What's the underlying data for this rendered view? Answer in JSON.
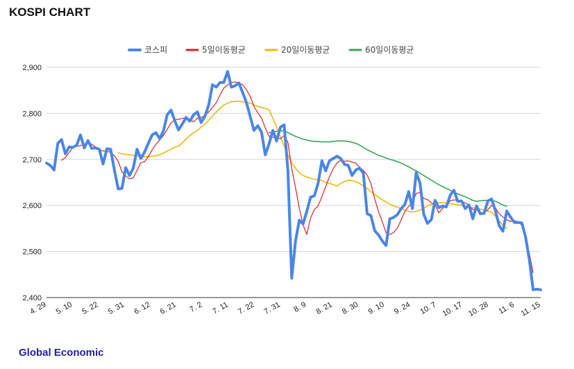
{
  "page": {
    "title": "KOSPI CHART",
    "footer": "Global Economic"
  },
  "colors": {
    "kospi": "#4a86e8",
    "ma5": "#e02020",
    "ma20": "#f2b705",
    "ma60": "#35a853",
    "grid": "#d6d6d6"
  },
  "chart_data": {
    "type": "line",
    "title": "KOSPI CHART",
    "ylim": [
      2400,
      2900
    ],
    "yticks": [
      "2,400",
      "2,500",
      "2,600",
      "2,700",
      "2,800",
      "2,900"
    ],
    "ytick_values": [
      2400,
      2500,
      2600,
      2700,
      2800,
      2900
    ],
    "xtick_labels": [
      "4. 29",
      "5. 10",
      "5. 22",
      "5. 31",
      "6. 12",
      "6. 21",
      "7. 2",
      "7. 11",
      "7. 22",
      "7. 31",
      "8. 9",
      "8. 21",
      "8. 30",
      "9. 10",
      "9. 24",
      "10. 7",
      "10. 17",
      "10. 28",
      "11. 6",
      "11. 15"
    ],
    "legend_position": "top-center",
    "grid": true,
    "series": [
      {
        "name": "코스피",
        "key": "kospi",
        "values": [
          2692,
          2687,
          2677,
          2735,
          2743,
          2712,
          2727,
          2726,
          2731,
          2753,
          2725,
          2741,
          2724,
          2725,
          2722,
          2690,
          2723,
          2722,
          2677,
          2636,
          2637,
          2682,
          2665,
          2681,
          2722,
          2702,
          2716,
          2735,
          2753,
          2758,
          2745,
          2762,
          2797,
          2807,
          2784,
          2764,
          2777,
          2791,
          2783,
          2797,
          2803,
          2780,
          2794,
          2818,
          2862,
          2857,
          2867,
          2867,
          2891,
          2857,
          2860,
          2866,
          2845,
          2823,
          2793,
          2763,
          2773,
          2759,
          2710,
          2734,
          2763,
          2740,
          2770,
          2775,
          2676,
          2442,
          2522,
          2568,
          2560,
          2587,
          2618,
          2621,
          2648,
          2697,
          2675,
          2697,
          2702,
          2707,
          2702,
          2689,
          2687,
          2665,
          2677,
          2681,
          2670,
          2582,
          2578,
          2545,
          2536,
          2523,
          2513,
          2571,
          2574,
          2580,
          2593,
          2602,
          2630,
          2593,
          2671,
          2649,
          2581,
          2561,
          2569,
          2611,
          2595,
          2599,
          2597,
          2622,
          2633,
          2609,
          2610,
          2593,
          2601,
          2571,
          2599,
          2582,
          2583,
          2610,
          2614,
          2588,
          2556,
          2544,
          2588,
          2575,
          2563,
          2563,
          2562,
          2531,
          2482,
          2417,
          2418,
          2417
        ]
      },
      {
        "name": "5일이동평균",
        "key": "ma5",
        "values": [
          null,
          null,
          null,
          null,
          2698,
          2704,
          2715,
          2726,
          2728,
          2730,
          2733,
          2735,
          2733,
          2727,
          2721,
          2718,
          2718,
          2715,
          2708,
          2696,
          2673,
          2664,
          2658,
          2660,
          2676,
          2693,
          2695,
          2706,
          2721,
          2733,
          2742,
          2752,
          2765,
          2779,
          2786,
          2787,
          2789,
          2790,
          2786,
          2782,
          2789,
          2791,
          2795,
          2803,
          2813,
          2823,
          2840,
          2855,
          2862,
          2867,
          2868,
          2866,
          2862,
          2851,
          2837,
          2815,
          2801,
          2790,
          2768,
          2750,
          2748,
          2746,
          2745,
          2752,
          2737,
          2680,
          2639,
          2594,
          2558,
          2537,
          2573,
          2591,
          2599,
          2619,
          2641,
          2662,
          2680,
          2692,
          2698,
          2696,
          2697,
          2694,
          2692,
          2683,
          2676,
          2666,
          2648,
          2614,
          2587,
          2565,
          2541,
          2537,
          2541,
          2551,
          2568,
          2587,
          2598,
          2606,
          2626,
          2628,
          2615,
          2613,
          2606,
          2601,
          2584,
          2594,
          2599,
          2610,
          2612,
          2611,
          2610,
          2605,
          2601,
          2591,
          2591,
          2584,
          2583,
          2591,
          2600,
          2595,
          2582,
          2575,
          2569,
          2565,
          2567,
          2565,
          2557,
          2530,
          2496,
          2454
        ]
      },
      {
        "name": "20일이동평균",
        "key": "ma20",
        "values": [
          null,
          null,
          null,
          null,
          null,
          null,
          null,
          null,
          null,
          null,
          null,
          null,
          null,
          null,
          null,
          null,
          null,
          null,
          null,
          2714,
          2712,
          2711,
          2710,
          2709,
          2708,
          2706,
          2706,
          2706,
          2707,
          2708,
          2710,
          2714,
          2718,
          2722,
          2726,
          2729,
          2736,
          2744,
          2752,
          2758,
          2763,
          2770,
          2777,
          2785,
          2794,
          2803,
          2811,
          2818,
          2822,
          2825,
          2826,
          2826,
          2825,
          2824,
          2822,
          2818,
          2815,
          2813,
          2811,
          2808,
          2789,
          2770,
          2749,
          2729,
          2710,
          2692,
          2681,
          2671,
          2665,
          2662,
          2659,
          2657,
          2656,
          2654,
          2650,
          2648,
          2645,
          2642,
          2648,
          2652,
          2655,
          2654,
          2651,
          2648,
          2642,
          2637,
          2630,
          2624,
          2618,
          2612,
          2608,
          2603,
          2599,
          2596,
          2593,
          2590,
          2587,
          2586,
          2587,
          2590,
          2594,
          2599,
          2602,
          2605,
          2606,
          2606,
          2605,
          2604,
          2603,
          2602,
          2600,
          2598,
          2596,
          2595,
          2594,
          2592,
          2590,
          2588,
          2585,
          2577,
          2567,
          2556,
          2550
        ]
      },
      {
        "name": "60일이동평균",
        "key": "ma60",
        "values": [
          null,
          null,
          null,
          null,
          null,
          null,
          null,
          null,
          null,
          null,
          null,
          null,
          null,
          null,
          null,
          null,
          null,
          null,
          null,
          null,
          null,
          null,
          null,
          null,
          null,
          null,
          null,
          null,
          null,
          null,
          null,
          null,
          null,
          null,
          null,
          null,
          null,
          null,
          null,
          null,
          null,
          null,
          null,
          null,
          null,
          null,
          null,
          null,
          null,
          null,
          null,
          null,
          null,
          null,
          null,
          null,
          null,
          null,
          null,
          2758,
          2760,
          2761,
          2762,
          2762,
          2758,
          2754,
          2750,
          2747,
          2744,
          2742,
          2740,
          2739,
          2739,
          2738,
          2738,
          2738,
          2739,
          2740,
          2740,
          2740,
          2739,
          2737,
          2735,
          2731,
          2726,
          2721,
          2717,
          2713,
          2709,
          2706,
          2703,
          2700,
          2698,
          2695,
          2692,
          2688,
          2684,
          2679,
          2675,
          2670,
          2665,
          2660,
          2655,
          2650,
          2645,
          2641,
          2637,
          2633,
          2629,
          2625,
          2622,
          2619,
          2615,
          2611,
          2609,
          2610,
          2611,
          2611,
          2611,
          2609,
          2605,
          2601,
          2598
        ]
      }
    ]
  }
}
